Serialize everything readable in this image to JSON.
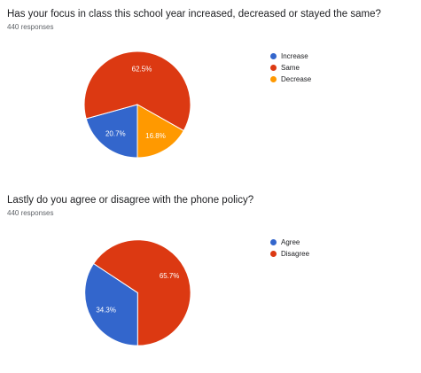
{
  "charts": [
    {
      "title": "Has your focus in class this school year increased, decreased or stayed the same?",
      "responses": "440 responses"
    },
    {
      "title": "Lastly do you agree or disagree with the phone policy?",
      "responses": "440 responses"
    }
  ],
  "chart_data": [
    {
      "type": "pie",
      "categories": [
        "Increase",
        "Same",
        "Decrease"
      ],
      "values": [
        20.7,
        62.5,
        16.8
      ],
      "labels": [
        "20.7%",
        "62.5%",
        "16.8%"
      ],
      "colors": [
        "#3366cc",
        "#dc3912",
        "#ff9900"
      ],
      "title": "Has your focus in class this school year increased, decreased or stayed the same?",
      "legend": "right"
    },
    {
      "type": "pie",
      "categories": [
        "Agree",
        "Disagree"
      ],
      "values": [
        34.3,
        65.7
      ],
      "labels": [
        "34.3%",
        "65.7%"
      ],
      "colors": [
        "#3366cc",
        "#dc3912"
      ],
      "title": "Lastly do you agree or disagree with the phone policy?",
      "legend": "right"
    }
  ]
}
